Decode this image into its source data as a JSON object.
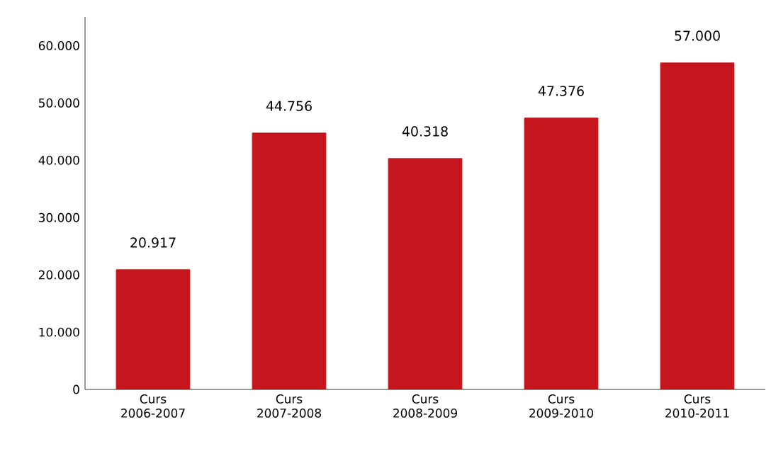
{
  "chart_data": {
    "type": "bar",
    "categories": [
      "Curs 2006-2007",
      "Curs 2007-2008",
      "Curs 2008-2009",
      "Curs 2009-2010",
      "Curs 2010-2011"
    ],
    "values": [
      20917,
      44756,
      40318,
      47376,
      57000
    ],
    "value_labels": [
      "20.917",
      "44.756",
      "40.318",
      "47.376",
      "57.000"
    ],
    "color": "#c4161c",
    "ylim": [
      0,
      65000
    ],
    "yticks": [
      {
        "value": 0,
        "label": "0"
      },
      {
        "value": 10000,
        "label": "10.000"
      },
      {
        "value": 20000,
        "label": "20.000"
      },
      {
        "value": 30000,
        "label": "30.000"
      },
      {
        "value": 40000,
        "label": "40.000"
      },
      {
        "value": 50000,
        "label": "50.000"
      },
      {
        "value": 60000,
        "label": "60.000"
      }
    ],
    "grid": false
  }
}
